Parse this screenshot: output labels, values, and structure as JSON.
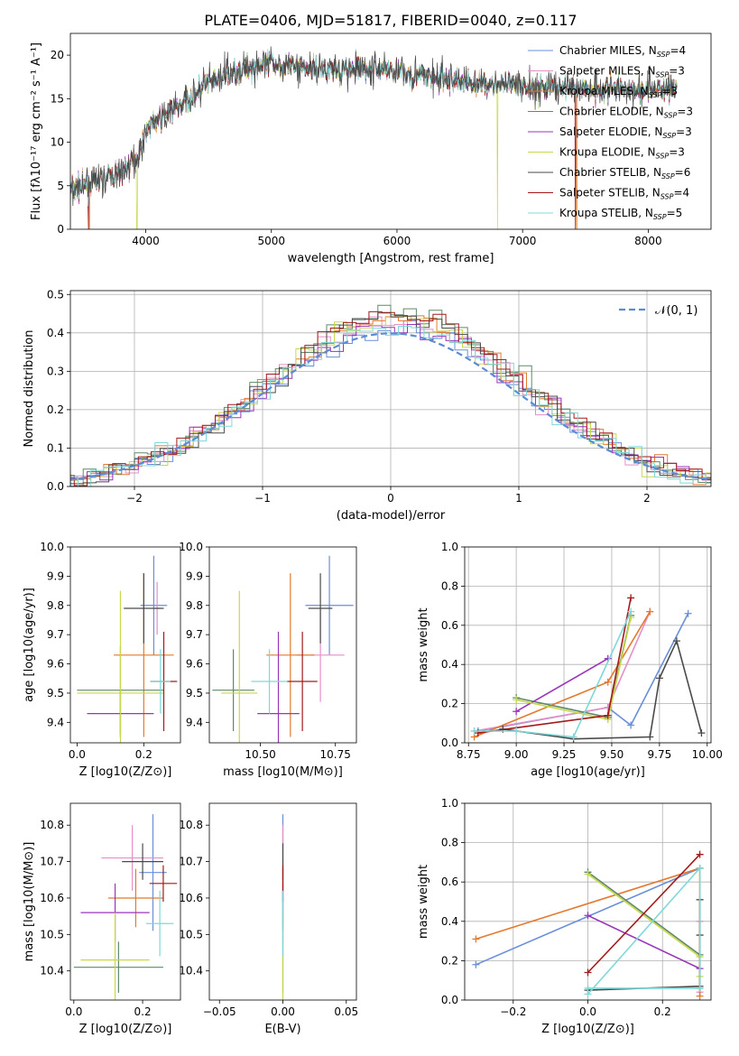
{
  "title": "PLATE=0406, MJD=51817, FIBERID=0040, z=0.117",
  "colors": [
    "#6a8fd8",
    "#e58fc8",
    "#e37a2e",
    "#5e8a6a",
    "#9b35b8",
    "#c8d84a",
    "#4a4a4a",
    "#a31a1a",
    "#7fd8d8"
  ],
  "chart_data": [
    {
      "id": "spectrum",
      "type": "line",
      "xlabel": "wavelength [Angstrom, rest frame]",
      "ylabel": "Flux [fλ10⁻¹⁷ erg cm⁻² s⁻¹ A⁻¹]",
      "xlim": [
        3400,
        8500
      ],
      "ylim": [
        0,
        22.5
      ],
      "xticks": [
        4000,
        5000,
        6000,
        7000,
        8000
      ],
      "yticks": [
        0,
        5,
        10,
        15,
        20
      ],
      "legend": "top-right",
      "series_names": [
        "Chabrier MILES, N_SSP=4",
        "Salpeter MILES, N_SSP=3",
        "Kroupa MILES, N_SSP=3",
        "Chabrier ELODIE, N_SSP=3",
        "Salpeter ELODIE, N_SSP=3",
        "Kroupa ELODIE, N_SSP=3",
        "Chabrier STELIB, N_SSP=6",
        "Salpeter STELIB, N_SSP=4",
        "Kroupa STELIB, N_SSP=5"
      ],
      "continuum": {
        "x": [
          3600,
          3800,
          3950,
          4000,
          4300,
          4500,
          4800,
          5000,
          5300,
          5600,
          5900,
          6200,
          6500,
          7000,
          7500,
          8000,
          8230
        ],
        "y": [
          5.5,
          6.5,
          8.5,
          11.5,
          14.5,
          16.8,
          18.5,
          19.0,
          18.5,
          18.2,
          18.5,
          17.6,
          17.0,
          16.4,
          16.3,
          16.1,
          16.3
        ]
      }
    },
    {
      "id": "residuals",
      "type": "step",
      "xlabel": "(data-model)/error",
      "ylabel": "Normed distribution",
      "xlim": [
        -2.5,
        2.5
      ],
      "ylim": [
        0,
        0.51
      ],
      "xticks": [
        -2,
        -1,
        0,
        1,
        2
      ],
      "yticks": [
        0.0,
        0.1,
        0.2,
        0.3,
        0.4,
        0.5
      ],
      "grid": true,
      "legend": "top-right",
      "gaussian_label": "𝒩(0, 1)"
    },
    {
      "id": "age_vs_Z",
      "type": "errorbar",
      "xlabel": "Z [log10(Z/Z⊙)]",
      "ylabel": "age  [log10(age/yr)]",
      "xlim": [
        -0.02,
        0.31
      ],
      "ylim": [
        9.33,
        10.0
      ],
      "xticks": [
        0.0,
        0.2
      ],
      "yticks": [
        9.4,
        9.5,
        9.6,
        9.7,
        9.8,
        9.9,
        10.0
      ],
      "points": [
        {
          "x": 0.23,
          "y": 9.8,
          "xerr": 0.04,
          "yerr": 0.17
        },
        {
          "x": 0.24,
          "y": 9.79,
          "xerr": 0.01,
          "yerr": 0.09
        },
        {
          "x": 0.2,
          "y": 9.63,
          "xerr": 0.09,
          "yerr": 0.28
        },
        {
          "x": 0.13,
          "y": 9.51,
          "xerr": 0.13,
          "yerr": 0.15
        },
        {
          "x": 0.13,
          "y": 9.43,
          "xerr": 0.1,
          "yerr": 0.08
        },
        {
          "x": 0.13,
          "y": 9.5,
          "xerr": 0.13,
          "yerr": 0.35
        },
        {
          "x": 0.2,
          "y": 9.79,
          "xerr": 0.06,
          "yerr": 0.12
        },
        {
          "x": 0.26,
          "y": 9.54,
          "xerr": 0.04,
          "yerr": 0.17
        },
        {
          "x": 0.25,
          "y": 9.54,
          "xerr": 0.03,
          "yerr": 0.11
        }
      ]
    },
    {
      "id": "age_vs_mass",
      "type": "errorbar",
      "xlabel": "mass [log10(M/M⊙)]",
      "ylabel": "",
      "xlim": [
        10.33,
        10.82
      ],
      "ylim": [
        9.33,
        10.0
      ],
      "xticks": [
        10.5,
        10.75
      ],
      "yticks": [
        9.4,
        9.5,
        9.6,
        9.7,
        9.8,
        9.9,
        10.0
      ],
      "points": [
        {
          "x": 10.73,
          "y": 9.8,
          "xerr": 0.08,
          "yerr": 0.17
        },
        {
          "x": 10.7,
          "y": 9.63,
          "xerr": 0.08,
          "yerr": 0.16
        },
        {
          "x": 10.6,
          "y": 9.63,
          "xerr": 0.08,
          "yerr": 0.28
        },
        {
          "x": 10.41,
          "y": 9.51,
          "xerr": 0.07,
          "yerr": 0.14
        },
        {
          "x": 10.56,
          "y": 9.43,
          "xerr": 0.07,
          "yerr": 0.28
        },
        {
          "x": 10.43,
          "y": 9.5,
          "xerr": 0.06,
          "yerr": 0.35
        },
        {
          "x": 10.7,
          "y": 9.79,
          "xerr": 0.04,
          "yerr": 0.12
        },
        {
          "x": 10.64,
          "y": 9.54,
          "xerr": 0.05,
          "yerr": 0.17
        },
        {
          "x": 10.53,
          "y": 9.54,
          "xerr": 0.06,
          "yerr": 0.11
        }
      ]
    },
    {
      "id": "weight_vs_age",
      "type": "line",
      "xlabel": "age  [log10(age/yr)]",
      "ylabel": "mass weight",
      "xlim": [
        8.73,
        10.02
      ],
      "ylim": [
        0.0,
        1.0
      ],
      "xticks": [
        8.75,
        9.0,
        9.25,
        9.5,
        9.75,
        10.0
      ],
      "yticks": [
        0.0,
        0.2,
        0.4,
        0.6,
        0.8,
        1.0
      ],
      "grid": true,
      "series": [
        {
          "x": [
            8.8,
            9.48,
            9.6,
            9.9
          ],
          "y": [
            0.06,
            0.18,
            0.09,
            0.66
          ]
        },
        {
          "x": [
            8.78,
            9.48,
            9.7
          ],
          "y": [
            0.06,
            0.18,
            0.67
          ]
        },
        {
          "x": [
            8.78,
            9.48,
            9.7
          ],
          "y": [
            0.03,
            0.31,
            0.67
          ]
        },
        {
          "x": [
            9.0,
            9.48,
            9.6
          ],
          "y": [
            0.23,
            0.13,
            0.65
          ]
        },
        {
          "x": [
            9.0,
            9.48
          ],
          "y": [
            0.16,
            0.43
          ]
        },
        {
          "x": [
            9.0,
            9.48,
            9.6
          ],
          "y": [
            0.22,
            0.12,
            0.64
          ]
        },
        {
          "x": [
            8.93,
            9.3,
            9.7,
            9.75,
            9.84,
            9.97
          ],
          "y": [
            0.07,
            0.02,
            0.03,
            0.33,
            0.52,
            0.05
          ]
        },
        {
          "x": [
            8.8,
            9.48,
            9.6
          ],
          "y": [
            0.05,
            0.14,
            0.74
          ]
        },
        {
          "x": [
            8.78,
            9.0,
            9.3,
            9.6
          ],
          "y": [
            0.06,
            0.06,
            0.03,
            0.67
          ]
        }
      ]
    },
    {
      "id": "mass_vs_Z",
      "type": "errorbar",
      "xlabel": "Z [log10(Z/Z⊙)]",
      "ylabel": "mass [log10(M/M⊙)]",
      "xlim": [
        -0.01,
        0.31
      ],
      "ylim": [
        10.32,
        10.86
      ],
      "xticks": [
        0.0,
        0.2
      ],
      "yticks": [
        10.4,
        10.5,
        10.6,
        10.7,
        10.8
      ],
      "points": [
        {
          "x": 0.23,
          "y": 10.67,
          "xerr": 0.04,
          "yerr": 0.16
        },
        {
          "x": 0.17,
          "y": 10.71,
          "xerr": 0.09,
          "yerr": 0.09
        },
        {
          "x": 0.18,
          "y": 10.6,
          "xerr": 0.08,
          "yerr": 0.08
        },
        {
          "x": 0.13,
          "y": 10.41,
          "xerr": 0.13,
          "yerr": 0.07
        },
        {
          "x": 0.12,
          "y": 10.56,
          "xerr": 0.1,
          "yerr": 0.08
        },
        {
          "x": 0.12,
          "y": 10.43,
          "xerr": 0.1,
          "yerr": 0.13
        },
        {
          "x": 0.2,
          "y": 10.7,
          "xerr": 0.06,
          "yerr": 0.05
        },
        {
          "x": 0.26,
          "y": 10.64,
          "xerr": 0.04,
          "yerr": 0.05
        },
        {
          "x": 0.25,
          "y": 10.53,
          "xerr": 0.04,
          "yerr": 0.09
        }
      ]
    },
    {
      "id": "mass_vs_ebv",
      "type": "errorbar",
      "xlabel": "E(B-V)",
      "ylabel": "",
      "xlim": [
        -0.058,
        0.058
      ],
      "ylim": [
        10.32,
        10.86
      ],
      "xticks": [
        -0.05,
        0.0,
        0.05
      ],
      "yticks": [
        10.4,
        10.5,
        10.6,
        10.7,
        10.8
      ],
      "points": [
        {
          "x": 0.0,
          "y": 10.67,
          "xerr": 0.0,
          "yerr": 0.16
        },
        {
          "x": 0.0,
          "y": 10.71,
          "xerr": 0.0,
          "yerr": 0.09
        },
        {
          "x": 0.0,
          "y": 10.6,
          "xerr": 0.0,
          "yerr": 0.08
        },
        {
          "x": 0.0,
          "y": 10.41,
          "xerr": 0.0,
          "yerr": 0.07
        },
        {
          "x": 0.0,
          "y": 10.56,
          "xerr": 0.0,
          "yerr": 0.08
        },
        {
          "x": 0.0,
          "y": 10.43,
          "xerr": 0.0,
          "yerr": 0.13
        },
        {
          "x": 0.0,
          "y": 10.7,
          "xerr": 0.0,
          "yerr": 0.05
        },
        {
          "x": 0.0,
          "y": 10.64,
          "xerr": 0.0,
          "yerr": 0.05
        },
        {
          "x": 0.0,
          "y": 10.53,
          "xerr": 0.0,
          "yerr": 0.09
        }
      ]
    },
    {
      "id": "weight_vs_Z",
      "type": "line",
      "xlabel": "Z [log10(Z/Z⊙)]",
      "ylabel": "mass weight",
      "xlim": [
        -0.33,
        0.33
      ],
      "ylim": [
        0.0,
        1.0
      ],
      "xticks": [
        -0.2,
        0.0,
        0.2
      ],
      "yticks": [
        0.0,
        0.2,
        0.4,
        0.6,
        0.8,
        1.0
      ],
      "grid": true,
      "series": [
        {
          "x": [
            -0.3,
            0.3
          ],
          "y": [
            0.18,
            0.67
          ]
        },
        {
          "x": [
            0.3,
            0.3,
            0.3
          ],
          "y": [
            0.4,
            0.04,
            0.06
          ]
        },
        {
          "x": [
            -0.3,
            0.3,
            0.3
          ],
          "y": [
            0.31,
            0.67,
            0.02
          ]
        },
        {
          "x": [
            0.0,
            0.3
          ],
          "y": [
            0.65,
            0.23
          ]
        },
        {
          "x": [
            0.0,
            0.3
          ],
          "y": [
            0.43,
            0.16
          ]
        },
        {
          "x": [
            0.0,
            0.3,
            0.3
          ],
          "y": [
            0.64,
            0.22,
            0.12
          ]
        },
        {
          "x": [
            0.0,
            0.3,
            0.3,
            0.3
          ],
          "y": [
            0.05,
            0.07,
            0.33,
            0.51
          ]
        },
        {
          "x": [
            0.0,
            0.3
          ],
          "y": [
            0.14,
            0.74
          ]
        },
        {
          "x": [
            0.0,
            0.3,
            0.3,
            0.0
          ],
          "y": [
            0.03,
            0.67,
            0.06,
            0.06
          ]
        }
      ]
    }
  ]
}
